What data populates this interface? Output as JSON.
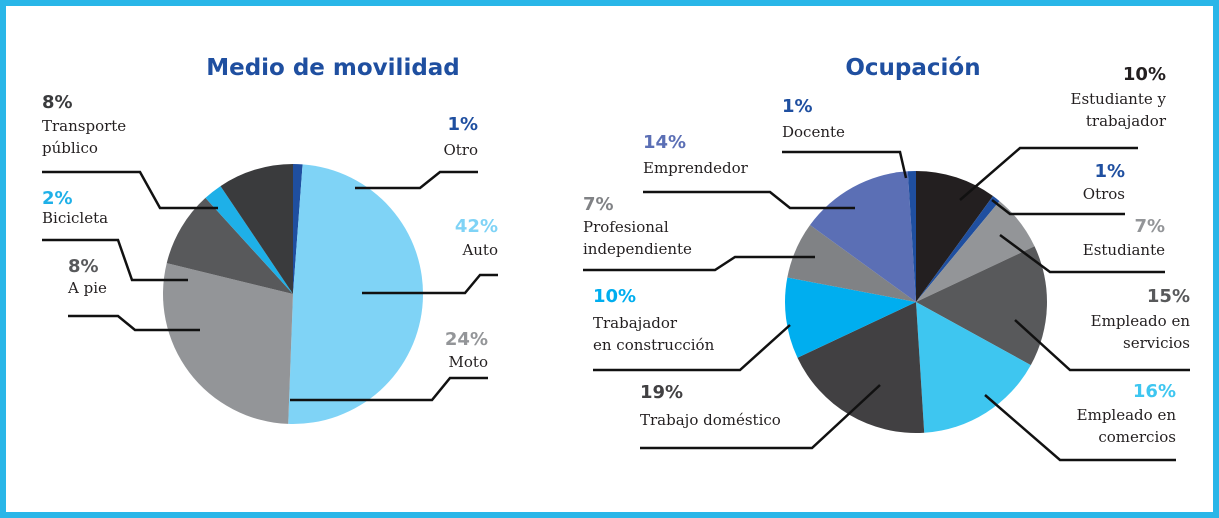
{
  "chart_data": [
    {
      "type": "pie",
      "title": "Medio de movilidad",
      "categories": [
        "Otro",
        "Auto",
        "Moto",
        "A pie",
        "Bicicleta",
        "Transporte\npúblico"
      ],
      "values": [
        1,
        42,
        24,
        8,
        2,
        8
      ],
      "value_labels": [
        "1%",
        "42%",
        "24%",
        "8%",
        "2%",
        "8%"
      ],
      "colors": [
        "#1f4fa0",
        "#7fd3f6",
        "#939598",
        "#58595b",
        "#1eb0e8",
        "#3a3b3d"
      ]
    },
    {
      "type": "pie",
      "title": "Ocupación",
      "categories": [
        "Estudiante y\ntrabajador",
        "Otros",
        "Estudiante",
        "Empleado en\nservicios",
        "Empleado en\ncomercios",
        "Trabajo doméstico",
        "Trabajador\nen construcción",
        "Profesional\nindependiente",
        "Emprendedor",
        "Docente"
      ],
      "values": [
        10,
        1,
        7,
        15,
        16,
        19,
        10,
        7,
        14,
        1
      ],
      "value_labels": [
        "10%",
        "1%",
        "7%",
        "15%",
        "16%",
        "19%",
        "10%",
        "7%",
        "14%",
        "1%"
      ],
      "colors": [
        "#231f20",
        "#1f4fa0",
        "#939598",
        "#58595b",
        "#3ec6f0",
        "#414042",
        "#00aeef",
        "#808285",
        "#5b6fb5",
        "#1f4fa0"
      ]
    }
  ]
}
